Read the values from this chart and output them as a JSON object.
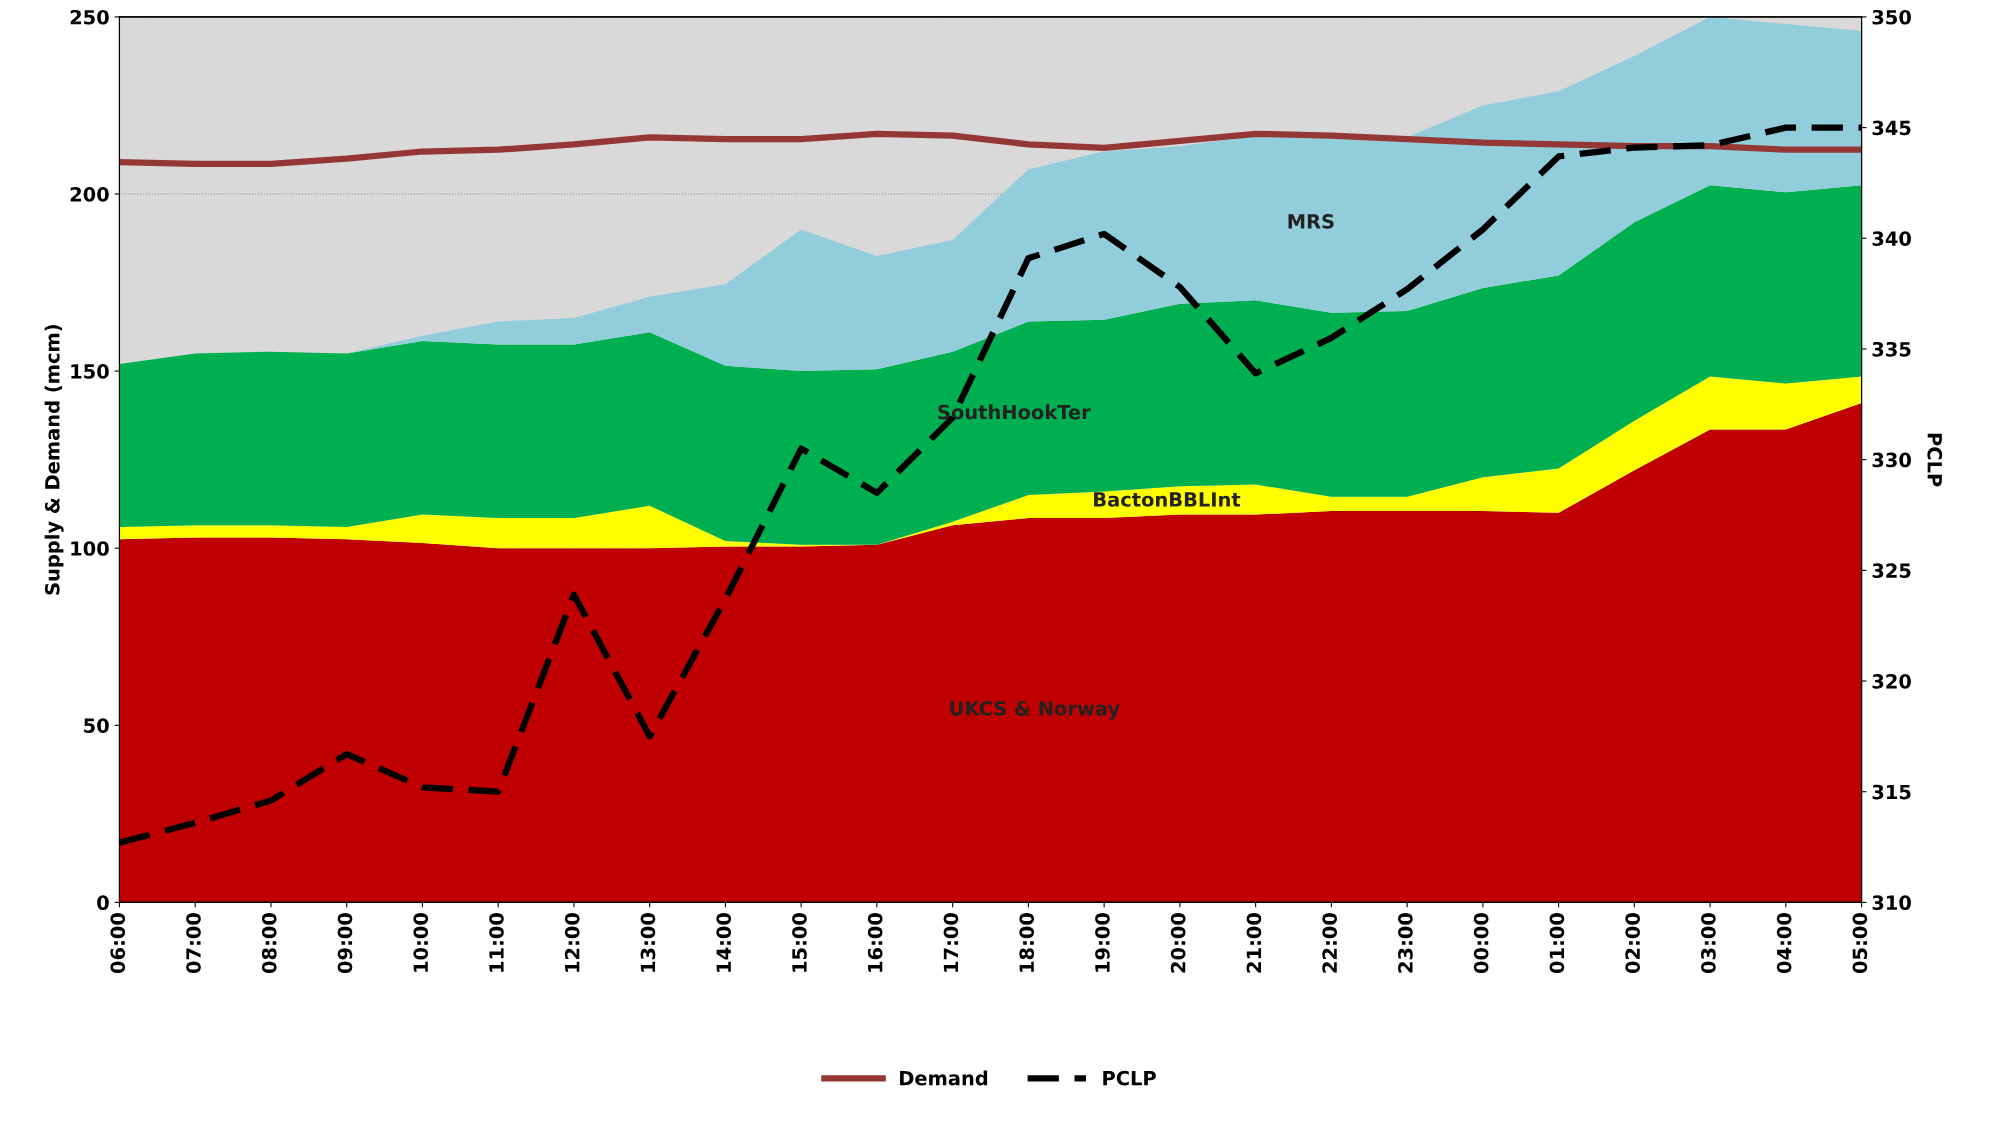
{
  "chart_data": {
    "type": "area",
    "stacked": true,
    "ylabel": "Supply & Demand (mcm)",
    "y2label": "PCLP",
    "categories": [
      "06:00",
      "07:00",
      "08:00",
      "09:00",
      "10:00",
      "11:00",
      "12:00",
      "13:00",
      "14:00",
      "15:00",
      "16:00",
      "17:00",
      "18:00",
      "19:00",
      "20:00",
      "21:00",
      "22:00",
      "23:00",
      "00:00",
      "01:00",
      "02:00",
      "03:00",
      "04:00",
      "05:00"
    ],
    "series": [
      {
        "name": "UKCS & Norway",
        "color": "#c00000",
        "values": [
          102.5,
          103,
          103,
          102.5,
          101.5,
          100,
          100,
          100,
          100.5,
          100.5,
          101,
          106.5,
          108.5,
          108.5,
          109.5,
          109.5,
          110.5,
          110.5,
          110.5,
          110,
          122,
          133.5,
          133.5,
          141
        ]
      },
      {
        "name": "BactonBBLInt",
        "color": "#ffff00",
        "values": [
          3.5,
          3.5,
          3.5,
          3.5,
          8,
          8.5,
          8.5,
          12,
          1.5,
          0.5,
          0,
          1,
          6.5,
          7.5,
          8,
          8.5,
          4,
          4,
          9.5,
          12.5,
          14,
          15,
          13,
          7.5
        ]
      },
      {
        "name": "SouthHookTer",
        "color": "#00b050",
        "values": [
          46,
          48.5,
          49,
          49,
          49,
          49,
          49,
          49,
          49.5,
          49,
          49.5,
          48,
          49,
          48.5,
          51.5,
          52,
          52,
          52.5,
          53.5,
          54.5,
          56,
          54,
          54,
          54
        ]
      },
      {
        "name": "MRS",
        "color": "#92cddc",
        "values": [
          0,
          0,
          0,
          0,
          1.5,
          6.5,
          7.5,
          10,
          23,
          40,
          32,
          31.5,
          43,
          47.5,
          44.5,
          46.5,
          49.5,
          49,
          51.5,
          52,
          47,
          47.5,
          47.5,
          43.5
        ]
      },
      {
        "name": "Demand",
        "type": "line",
        "color": "#953735",
        "line_style": "solid",
        "values": [
          209,
          208.5,
          208.5,
          210,
          212,
          212.5,
          214,
          216,
          215.5,
          215.5,
          217,
          216.5,
          214,
          213,
          215,
          217,
          216.5,
          215.5,
          214.5,
          214,
          213.5,
          213.5,
          212.5,
          212.5
        ]
      },
      {
        "name": "PCLP",
        "type": "line",
        "axis": "y2",
        "color": "#000000",
        "line_style": "dashed",
        "values": [
          312.7,
          313.6,
          314.6,
          316.7,
          315.2,
          315,
          323.9,
          317.5,
          323.7,
          330.5,
          328.5,
          331.9,
          339.1,
          340.2,
          337.8,
          333.9,
          335.5,
          337.7,
          340.4,
          343.7,
          344.1,
          344.2,
          345,
          345
        ]
      }
    ],
    "ylim": [
      0,
      250
    ],
    "yticks": [
      0,
      50,
      100,
      150,
      200,
      250
    ],
    "y2lim": [
      310,
      350
    ],
    "y2ticks": [
      310,
      315,
      320,
      325,
      330,
      335,
      340,
      345,
      350
    ],
    "grid": "y",
    "legend": "bottom",
    "marker": "none"
  }
}
